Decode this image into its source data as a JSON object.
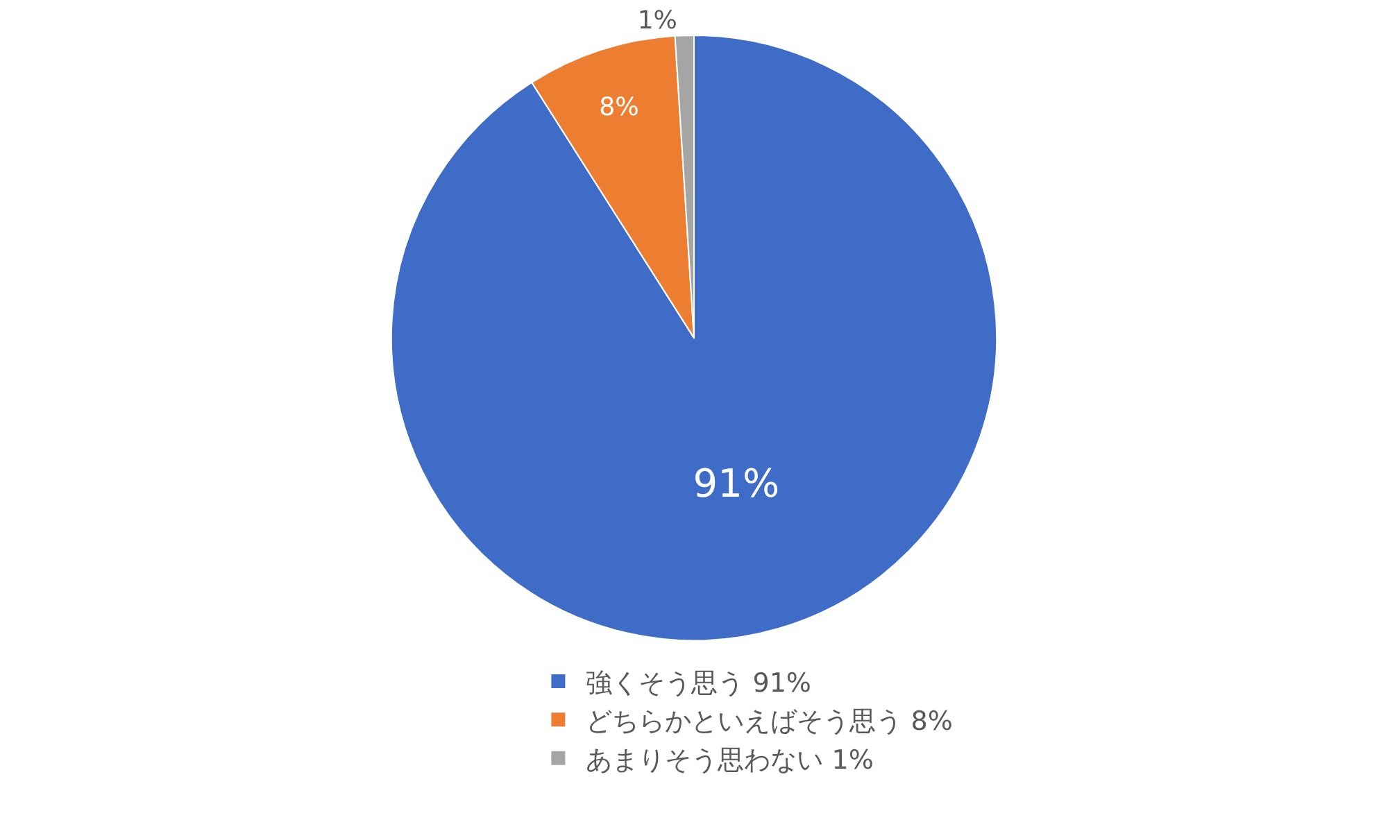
{
  "chart_data": {
    "type": "pie",
    "categories": [
      "強くそう思う 91%",
      "どちらかといえばそう思う 8%",
      "あまりそう思わない 1%"
    ],
    "values": [
      91,
      8,
      1
    ],
    "colors": [
      "#3f6cc6",
      "#ed7d31",
      "#a5a5a5"
    ],
    "value_labels": [
      "91%",
      "8%",
      "1%"
    ],
    "legend": "bottom"
  }
}
